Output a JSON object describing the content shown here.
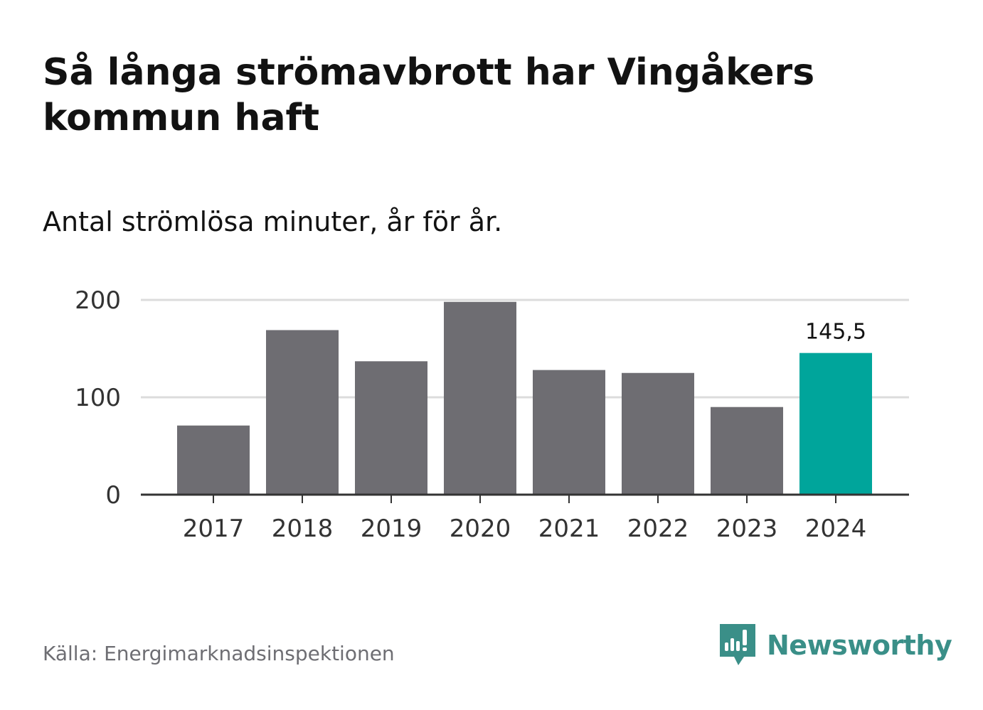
{
  "title": "Så långa strömavbrott har Vingåkers kommun haft",
  "subtitle": "Antal strömlösa minuter, år för år.",
  "source": "Källa: Energimarknadsinspektionen",
  "brand": {
    "name": "Newsworthy",
    "icon": "newsworthy-logo-icon",
    "color": "#3a8f88"
  },
  "chart_data": {
    "type": "bar",
    "categories": [
      "2017",
      "2018",
      "2019",
      "2020",
      "2021",
      "2022",
      "2023",
      "2024"
    ],
    "values": [
      71,
      169,
      137,
      198,
      128,
      125,
      90,
      145.5
    ],
    "ylim": [
      0,
      200
    ],
    "yticks": [
      0,
      100,
      200
    ],
    "ytick_labels": [
      "0",
      "100",
      "200"
    ],
    "grid": true,
    "bar_color": "#6e6d72",
    "highlight_color": "#00a59b",
    "highlight_index": 7,
    "data_labels": [
      {
        "index": 7,
        "text": "145,5"
      }
    ]
  }
}
